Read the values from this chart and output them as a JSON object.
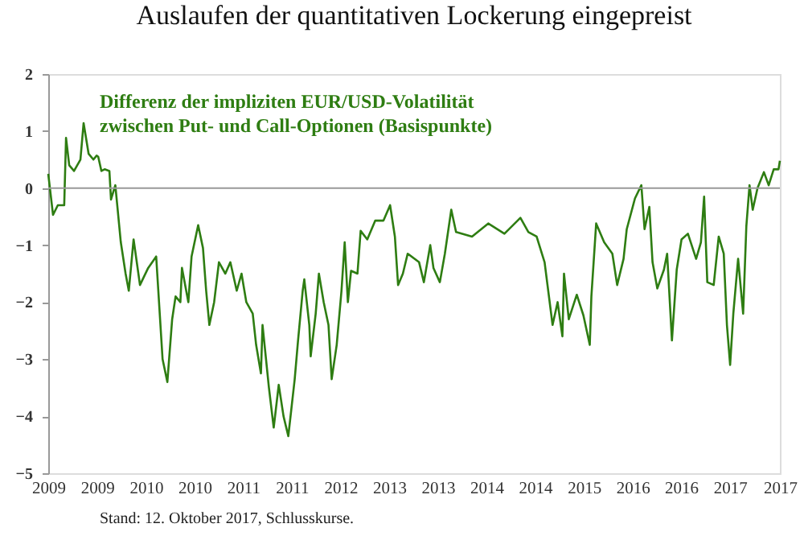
{
  "chart_data": {
    "type": "line",
    "title": "Auslaufen der quantitativen Lockerung eingepreist",
    "x": [
      "2009-01-01",
      "2009-01-22",
      "2009-02-12",
      "2009-03-12",
      "2009-03-20",
      "2009-04-03",
      "2009-04-24",
      "2009-05-22",
      "2009-06-05",
      "2009-06-27",
      "2009-07-18",
      "2009-08-01",
      "2009-08-08",
      "2009-08-22",
      "2009-09-05",
      "2009-09-26",
      "2009-10-03",
      "2009-10-22",
      "2009-11-15",
      "2009-12-06",
      "2009-12-20",
      "2010-01-10",
      "2010-02-07",
      "2010-03-15",
      "2010-04-19",
      "2010-05-03",
      "2010-05-17",
      "2010-06-07",
      "2010-06-28",
      "2010-07-13",
      "2010-08-03",
      "2010-08-10",
      "2010-09-07",
      "2010-09-21",
      "2010-10-20",
      "2010-11-10",
      "2010-11-24",
      "2010-12-08",
      "2010-12-29",
      "2011-01-19",
      "2011-02-16",
      "2011-03-10",
      "2011-04-07",
      "2011-04-28",
      "2011-05-19",
      "2011-06-16",
      "2011-07-01",
      "2011-07-22",
      "2011-07-29",
      "2011-08-26",
      "2011-09-16",
      "2011-10-08",
      "2011-10-29",
      "2011-11-19",
      "2011-12-17",
      "2011-12-31",
      "2012-01-21",
      "2012-01-28",
      "2012-02-19",
      "2012-02-25",
      "2012-03-18",
      "2012-04-01",
      "2012-04-22",
      "2012-05-13",
      "2012-05-27",
      "2012-06-18",
      "2012-07-09",
      "2012-07-23",
      "2012-08-06",
      "2012-08-20",
      "2012-09-17",
      "2012-10-01",
      "2012-10-30",
      "2012-12-04",
      "2013-01-09",
      "2013-02-07",
      "2013-02-28",
      "2013-03-14",
      "2013-04-04",
      "2013-04-25",
      "2013-06-14",
      "2013-07-05",
      "2013-08-02",
      "2013-08-16",
      "2013-09-13",
      "2013-10-05",
      "2013-11-02",
      "2013-11-23",
      "2014-02-01",
      "2014-04-13",
      "2014-06-23",
      "2014-09-01",
      "2014-10-06",
      "2014-11-11",
      "2014-12-16",
      "2015-01-20",
      "2015-02-11",
      "2015-03-04",
      "2015-03-11",
      "2015-04-01",
      "2015-05-06",
      "2015-06-04",
      "2015-07-02",
      "2015-07-09",
      "2015-07-30",
      "2015-09-03",
      "2015-10-09",
      "2015-10-30",
      "2015-11-27",
      "2015-12-11",
      "2016-01-16",
      "2016-02-13",
      "2016-02-27",
      "2016-03-19",
      "2016-04-02",
      "2016-04-23",
      "2016-05-22",
      "2016-06-05",
      "2016-06-26",
      "2016-07-17",
      "2016-08-07",
      "2016-09-04",
      "2016-10-10",
      "2016-10-31",
      "2016-11-14",
      "2016-11-28",
      "2016-12-26",
      "2017-01-17",
      "2017-02-08",
      "2017-02-22",
      "2017-03-08",
      "2017-03-22",
      "2017-04-12",
      "2017-05-04",
      "2017-05-18",
      "2017-06-01",
      "2017-06-15",
      "2017-07-06",
      "2017-08-03",
      "2017-08-24",
      "2017-09-15",
      "2017-10-06",
      "2017-10-12"
    ],
    "series": [
      {
        "name": "Differenz der impliziten EUR/USD-Volatilität\nzwischen Put- und Call-Optionen (Basispunkte)",
        "color": "#2e7d12",
        "values": [
          0.25,
          -0.47,
          -0.3,
          -0.3,
          0.88,
          0.4,
          0.3,
          0.5,
          1.14,
          0.6,
          0.5,
          0.57,
          0.55,
          0.3,
          0.33,
          0.3,
          -0.2,
          0.05,
          -0.95,
          -1.5,
          -1.8,
          -0.9,
          -1.7,
          -1.4,
          -1.2,
          -2.1,
          -3.0,
          -3.4,
          -2.3,
          -1.9,
          -2.0,
          -1.4,
          -2.0,
          -1.2,
          -0.65,
          -1.05,
          -1.8,
          -2.4,
          -2.0,
          -1.3,
          -1.5,
          -1.3,
          -1.8,
          -1.5,
          -2.0,
          -2.2,
          -2.75,
          -3.25,
          -2.4,
          -3.5,
          -4.2,
          -3.45,
          -4.0,
          -4.35,
          -3.35,
          -2.7,
          -1.8,
          -1.6,
          -2.4,
          -2.95,
          -2.2,
          -1.5,
          -2.0,
          -2.4,
          -3.35,
          -2.75,
          -1.8,
          -0.95,
          -2.0,
          -1.45,
          -1.5,
          -0.75,
          -0.9,
          -0.57,
          -0.57,
          -0.3,
          -0.85,
          -1.7,
          -1.5,
          -1.15,
          -1.3,
          -1.65,
          -1.0,
          -1.4,
          -1.65,
          -1.15,
          -0.38,
          -0.77,
          -0.85,
          -0.62,
          -0.8,
          -0.52,
          -0.77,
          -0.85,
          -1.3,
          -2.4,
          -2.0,
          -2.6,
          -1.5,
          -2.3,
          -1.87,
          -2.23,
          -2.75,
          -1.9,
          -0.62,
          -0.95,
          -1.15,
          -1.7,
          -1.24,
          -0.72,
          -0.18,
          0.05,
          -0.72,
          -0.33,
          -1.3,
          -1.76,
          -1.43,
          -1.15,
          -2.67,
          -1.43,
          -0.9,
          -0.8,
          -1.24,
          -0.95,
          -0.15,
          -1.65,
          -1.7,
          -0.85,
          -1.15,
          -2.4,
          -3.1,
          -2.2,
          -1.24,
          -2.2,
          -0.67,
          0.05,
          -0.38,
          0.0,
          0.28,
          0.05,
          0.33,
          0.33,
          0.48
        ]
      }
    ],
    "xlim": [
      "2009-01-01",
      "2017-10-12"
    ],
    "xticks": [
      {
        "value": "2009-01-01",
        "label": "2009"
      },
      {
        "value": "2009-08-03",
        "label": "2009"
      },
      {
        "value": "2010-03-05",
        "label": "2010"
      },
      {
        "value": "2010-10-04",
        "label": "2010"
      },
      {
        "value": "2011-05-05",
        "label": "2011"
      },
      {
        "value": "2011-12-04",
        "label": "2011"
      },
      {
        "value": "2012-07-05",
        "label": "2012"
      },
      {
        "value": "2013-02-03",
        "label": "2013"
      },
      {
        "value": "2013-09-04",
        "label": "2013"
      },
      {
        "value": "2014-04-05",
        "label": "2014"
      },
      {
        "value": "2014-11-04",
        "label": "2014"
      },
      {
        "value": "2015-06-06",
        "label": "2015"
      },
      {
        "value": "2016-01-05",
        "label": "2016"
      },
      {
        "value": "2016-08-05",
        "label": "2016"
      },
      {
        "value": "2017-03-07",
        "label": "2017"
      },
      {
        "value": "2017-10-12",
        "label": "2017"
      }
    ],
    "ylim": [
      -5,
      2
    ],
    "yticks": [
      -5,
      -4,
      -3,
      -2,
      -1,
      0,
      1,
      2
    ],
    "ref_lines": [
      {
        "axis": "y",
        "value": 0,
        "color": "#999999"
      }
    ],
    "annotations": [
      "Stand: 12. Oktober 2017, Schlusskurse."
    ],
    "grid": false,
    "legend": false,
    "marker": "none",
    "line_style": "solid"
  }
}
